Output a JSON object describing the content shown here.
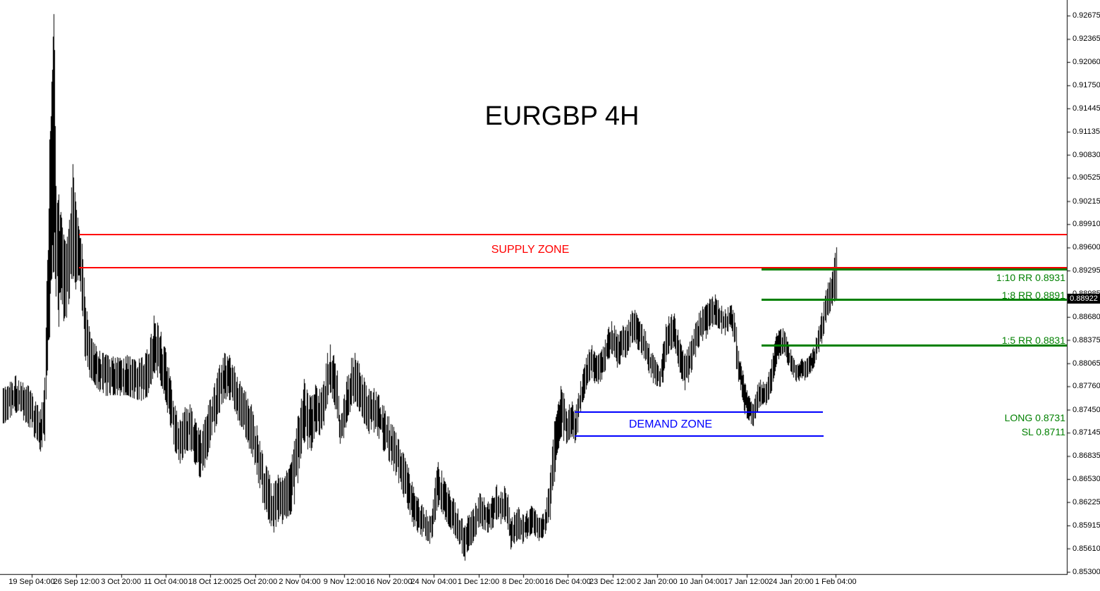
{
  "chart_data": {
    "type": "ohlc-bars",
    "title": "EURGBP 4H",
    "symbol": "EURGBP",
    "timeframe": "4H",
    "background_color": "#FFFFFF",
    "bar_color": "#000000",
    "current_price": "0.88922",
    "price_axis": {
      "side": "right",
      "ticks": [
        "0.92675",
        "0.92365",
        "0.92060",
        "0.91750",
        "0.91445",
        "0.91135",
        "0.90830",
        "0.90525",
        "0.90215",
        "0.89910",
        "0.89600",
        "0.89295",
        "0.88985",
        "0.88680",
        "0.88375",
        "0.88065",
        "0.87760",
        "0.87450",
        "0.87145",
        "0.86835",
        "0.86530",
        "0.86225",
        "0.85915",
        "0.85610",
        "0.85300"
      ],
      "top_price": 0.92675,
      "bottom_price": 0.853
    },
    "time_axis": {
      "labels": [
        "19 Sep 04:00",
        "26 Sep 12:00",
        "3 Oct 20:00",
        "11 Oct 04:00",
        "18 Oct 12:00",
        "25 Oct 20:00",
        "2 Nov 04:00",
        "9 Nov 12:00",
        "16 Nov 20:00",
        "24 Nov 04:00",
        "1 Dec 12:00",
        "8 Dec 20:00",
        "16 Dec 04:00",
        "23 Dec 12:00",
        "2 Jan 20:00",
        "10 Jan 04:00",
        "17 Jan 12:00",
        "24 Jan 20:00",
        "1 Feb 04:00"
      ]
    },
    "zones": {
      "supply": {
        "label": "SUPPLY ZONE",
        "color": "#FF0000",
        "top_price": 0.8978,
        "bottom_price": 0.8934
      },
      "demand": {
        "label": "DEMAND ZONE",
        "color": "#0000FF",
        "top_price": 0.8743,
        "bottom_price": 0.8711
      }
    },
    "levels": [
      {
        "label": "1:10 RR 0.8931",
        "price": 0.8931,
        "color": "#008000",
        "has_line": true
      },
      {
        "label": "1:8 RR 0.8891",
        "price": 0.8891,
        "color": "#008000",
        "has_line": true
      },
      {
        "label": "1:5 RR 0.8831",
        "price": 0.8831,
        "color": "#008000",
        "has_line": true
      },
      {
        "label": "LONG 0.8731",
        "price": 0.8731,
        "color": "#008000",
        "has_line": false
      },
      {
        "label": "SL 0.8711",
        "price": 0.8711,
        "color": "#008000",
        "has_line": false
      }
    ],
    "bars_path": [
      [
        5,
        0.87735,
        0.87267
      ],
      [
        22,
        0.87903,
        0.87407
      ],
      [
        40,
        0.87763,
        0.8722
      ],
      [
        57,
        0.87454,
        0.86893
      ],
      [
        63,
        0.87875,
        0.87033
      ],
      [
        67,
        0.89436,
        0.87968
      ],
      [
        70,
        0.91035,
        0.88408
      ],
      [
        73,
        0.91802,
        0.89184
      ],
      [
        76,
        0.927,
        0.89277
      ],
      [
        79,
        0.90418,
        0.88997
      ],
      [
        83,
        0.90306,
        0.88548
      ],
      [
        86,
        0.90072,
        0.88903
      ],
      [
        90,
        0.89745,
        0.88623
      ],
      [
        94,
        0.89651,
        0.8867
      ],
      [
        98,
        0.89932,
        0.88922
      ],
      [
        103,
        0.90708,
        0.89184
      ],
      [
        107,
        0.90212,
        0.89044
      ],
      [
        112,
        0.89838,
        0.89231
      ],
      [
        116,
        0.89651,
        0.88763
      ],
      [
        120,
        0.8895,
        0.88155
      ],
      [
        127,
        0.88483,
        0.87875
      ],
      [
        134,
        0.88324,
        0.87781
      ],
      [
        141,
        0.8823,
        0.87688
      ],
      [
        150,
        0.88183,
        0.87632
      ],
      [
        160,
        0.88155,
        0.87641
      ],
      [
        170,
        0.88137,
        0.87632
      ],
      [
        180,
        0.88174,
        0.87641
      ],
      [
        190,
        0.88118,
        0.87594
      ],
      [
        200,
        0.88137,
        0.87566
      ],
      [
        208,
        0.88249,
        0.87613
      ],
      [
        214,
        0.88455,
        0.87781
      ],
      [
        218,
        0.88698,
        0.8794
      ],
      [
        223,
        0.88604,
        0.87875
      ],
      [
        228,
        0.88483,
        0.87763
      ],
      [
        234,
        0.88268,
        0.87576
      ],
      [
        241,
        0.87894,
        0.87239
      ],
      [
        248,
        0.87501,
        0.86893
      ],
      [
        255,
        0.87314,
        0.86734
      ],
      [
        262,
        0.87482,
        0.86865
      ],
      [
        269,
        0.8752,
        0.86921
      ],
      [
        276,
        0.87333,
        0.86734
      ],
      [
        283,
        0.87174,
        0.86547
      ],
      [
        290,
        0.87314,
        0.86678
      ],
      [
        297,
        0.87576,
        0.8694
      ],
      [
        304,
        0.878,
        0.87146
      ],
      [
        311,
        0.88043,
        0.87407
      ],
      [
        318,
        0.88202,
        0.87594
      ],
      [
        325,
        0.88174,
        0.87576
      ],
      [
        332,
        0.88015,
        0.87454
      ],
      [
        340,
        0.87828,
        0.87239
      ],
      [
        348,
        0.87688,
        0.8708
      ],
      [
        356,
        0.8752,
        0.86865
      ],
      [
        364,
        0.87239,
        0.86585
      ],
      [
        372,
        0.86865,
        0.86211
      ],
      [
        380,
        0.86641,
        0.85986
      ],
      [
        388,
        0.86472,
        0.85818
      ],
      [
        394,
        0.86585,
        0.85958
      ],
      [
        400,
        0.86547,
        0.8593
      ],
      [
        406,
        0.86641,
        0.86005
      ],
      [
        412,
        0.86734,
        0.86061
      ],
      [
        417,
        0.87033,
        0.86192
      ],
      [
        422,
        0.87361,
        0.86472
      ],
      [
        427,
        0.87594,
        0.86865
      ],
      [
        431,
        0.87856,
        0.87005
      ],
      [
        436,
        0.87669,
        0.86921
      ],
      [
        441,
        0.87632,
        0.86902
      ],
      [
        447,
        0.87781,
        0.87155
      ],
      [
        453,
        0.87725,
        0.87108
      ],
      [
        459,
        0.87828,
        0.87239
      ],
      [
        464,
        0.88202,
        0.8752
      ],
      [
        468,
        0.88314,
        0.87669
      ],
      [
        473,
        0.88174,
        0.87548
      ],
      [
        478,
        0.87968,
        0.87333
      ],
      [
        482,
        0.87314,
        0.86996
      ],
      [
        487,
        0.87594,
        0.87071
      ],
      [
        492,
        0.87894,
        0.87295
      ],
      [
        498,
        0.88137,
        0.87501
      ],
      [
        503,
        0.88202,
        0.87548
      ],
      [
        509,
        0.88062,
        0.87426
      ],
      [
        516,
        0.87875,
        0.87267
      ],
      [
        523,
        0.87725,
        0.87127
      ],
      [
        530,
        0.87735,
        0.87146
      ],
      [
        537,
        0.87641,
        0.87061
      ],
      [
        544,
        0.87501,
        0.86893
      ],
      [
        551,
        0.87361,
        0.86772
      ],
      [
        558,
        0.8722,
        0.86631
      ],
      [
        565,
        0.87052,
        0.86472
      ],
      [
        572,
        0.86865,
        0.86285
      ],
      [
        579,
        0.86678,
        0.86117
      ],
      [
        586,
        0.86426,
        0.85893
      ],
      [
        592,
        0.86285,
        0.85818
      ],
      [
        598,
        0.86192,
        0.85762
      ],
      [
        604,
        0.86117,
        0.85724
      ],
      [
        609,
        0.86043,
        0.85668
      ],
      [
        613,
        0.86136,
        0.85762
      ],
      [
        617,
        0.86547,
        0.85986
      ],
      [
        621,
        0.86753,
        0.86154
      ],
      [
        626,
        0.86641,
        0.86089
      ],
      [
        631,
        0.86491,
        0.85986
      ],
      [
        637,
        0.86379,
        0.85893
      ],
      [
        643,
        0.86267,
        0.85799
      ],
      [
        649,
        0.86136,
        0.85706
      ],
      [
        655,
        0.86005,
        0.85537
      ],
      [
        659,
        0.85911,
        0.85444
      ],
      [
        663,
        0.86043,
        0.85575
      ],
      [
        668,
        0.86098,
        0.8565
      ],
      [
        674,
        0.86211,
        0.85762
      ],
      [
        680,
        0.86341,
        0.85893
      ],
      [
        686,
        0.86285,
        0.85855
      ],
      [
        692,
        0.86229,
        0.85818
      ],
      [
        698,
        0.86304,
        0.85874
      ],
      [
        704,
        0.86454,
        0.85986
      ],
      [
        710,
        0.8636,
        0.8593
      ],
      [
        715,
        0.86435,
        0.85986
      ],
      [
        720,
        0.86323,
        0.85874
      ],
      [
        724,
        0.86005,
        0.85593
      ],
      [
        729,
        0.86089,
        0.85668
      ],
      [
        735,
        0.86154,
        0.85734
      ],
      [
        741,
        0.86061,
        0.85668
      ],
      [
        747,
        0.86108,
        0.85734
      ],
      [
        753,
        0.86173,
        0.85799
      ],
      [
        759,
        0.86117,
        0.85762
      ],
      [
        764,
        0.86014,
        0.85706
      ],
      [
        769,
        0.86061,
        0.85743
      ],
      [
        773,
        0.86126,
        0.85799
      ],
      [
        777,
        0.86398,
        0.85949
      ],
      [
        780,
        0.86613,
        0.85986
      ],
      [
        783,
        0.86959,
        0.86379
      ],
      [
        786,
        0.87295,
        0.86491
      ],
      [
        789,
        0.87389,
        0.86846
      ],
      [
        792,
        0.87557,
        0.8694
      ],
      [
        795,
        0.87763,
        0.8708
      ],
      [
        799,
        0.87669,
        0.87033
      ],
      [
        803,
        0.87426,
        0.86996
      ],
      [
        807,
        0.8752,
        0.87052
      ],
      [
        811,
        0.87557,
        0.87089
      ],
      [
        815,
        0.87445,
        0.87005
      ],
      [
        819,
        0.87594,
        0.87146
      ],
      [
        823,
        0.87828,
        0.87417
      ],
      [
        827,
        0.87987,
        0.87576
      ],
      [
        831,
        0.88137,
        0.87735
      ],
      [
        835,
        0.88249,
        0.87819
      ],
      [
        839,
        0.88305,
        0.87865
      ],
      [
        843,
        0.88211,
        0.878
      ],
      [
        848,
        0.88174,
        0.87791
      ],
      [
        853,
        0.88249,
        0.87847
      ],
      [
        858,
        0.8838,
        0.87968
      ],
      [
        863,
        0.88548,
        0.88118
      ],
      [
        867,
        0.88623,
        0.88193
      ],
      [
        871,
        0.88567,
        0.88146
      ],
      [
        875,
        0.88455,
        0.88006
      ],
      [
        879,
        0.88492,
        0.88052
      ],
      [
        883,
        0.88567,
        0.88155
      ],
      [
        887,
        0.88548,
        0.88137
      ],
      [
        891,
        0.88642,
        0.8823
      ],
      [
        896,
        0.88763,
        0.88333
      ],
      [
        900,
        0.88772,
        0.88342
      ],
      [
        905,
        0.8866,
        0.88239
      ],
      [
        910,
        0.88585,
        0.88174
      ],
      [
        915,
        0.88492,
        0.88099
      ],
      [
        920,
        0.88324,
        0.87931
      ],
      [
        926,
        0.88174,
        0.878
      ],
      [
        931,
        0.88081,
        0.87763
      ],
      [
        936,
        0.87987,
        0.87753
      ],
      [
        940,
        0.88324,
        0.87809
      ],
      [
        944,
        0.88585,
        0.88081
      ],
      [
        948,
        0.88688,
        0.88193
      ],
      [
        952,
        0.88716,
        0.88249
      ],
      [
        956,
        0.88726,
        0.88286
      ],
      [
        961,
        0.88511,
        0.88062
      ],
      [
        966,
        0.88305,
        0.87856
      ],
      [
        971,
        0.88193,
        0.87707
      ],
      [
        976,
        0.88286,
        0.87819
      ],
      [
        981,
        0.88436,
        0.87978
      ],
      [
        986,
        0.88595,
        0.88146
      ],
      [
        991,
        0.88735,
        0.88286
      ],
      [
        996,
        0.88819,
        0.88361
      ],
      [
        1001,
        0.88847,
        0.88389
      ],
      [
        1006,
        0.88922,
        0.88511
      ],
      [
        1010,
        0.8895,
        0.88548
      ],
      [
        1014,
        0.88978,
        0.88576
      ],
      [
        1018,
        0.88903,
        0.88529
      ],
      [
        1023,
        0.88829,
        0.88455
      ],
      [
        1028,
        0.88782,
        0.88436
      ],
      [
        1032,
        0.8881,
        0.88483
      ],
      [
        1037,
        0.88838,
        0.88529
      ],
      [
        1041,
        0.88735,
        0.88342
      ],
      [
        1044,
        0.88529,
        0.87987
      ],
      [
        1047,
        0.8823,
        0.87819
      ],
      [
        1050,
        0.8809,
        0.87707
      ],
      [
        1053,
        0.87968,
        0.87576
      ],
      [
        1056,
        0.878,
        0.87389
      ],
      [
        1059,
        0.87707,
        0.87333
      ],
      [
        1062,
        0.87632,
        0.87304
      ],
      [
        1065,
        0.87557,
        0.87258
      ],
      [
        1068,
        0.8752,
        0.8723
      ],
      [
        1071,
        0.8765,
        0.87333
      ],
      [
        1074,
        0.87781,
        0.87417
      ],
      [
        1078,
        0.87847,
        0.87491
      ],
      [
        1082,
        0.87819,
        0.8752
      ],
      [
        1086,
        0.87791,
        0.8751
      ],
      [
        1090,
        0.8795,
        0.87585
      ],
      [
        1094,
        0.88118,
        0.87697
      ],
      [
        1098,
        0.88324,
        0.87903
      ],
      [
        1101,
        0.88464,
        0.88052
      ],
      [
        1104,
        0.88501,
        0.88118
      ],
      [
        1107,
        0.8852,
        0.88165
      ],
      [
        1110,
        0.88529,
        0.88193
      ],
      [
        1113,
        0.88473,
        0.88165
      ],
      [
        1117,
        0.88352,
        0.88043
      ],
      [
        1121,
        0.88249,
        0.87959
      ],
      [
        1125,
        0.88137,
        0.87875
      ],
      [
        1129,
        0.88043,
        0.87819
      ],
      [
        1133,
        0.88062,
        0.87828
      ],
      [
        1137,
        0.88127,
        0.87865
      ],
      [
        1141,
        0.88099,
        0.87837
      ],
      [
        1145,
        0.88137,
        0.87884
      ],
      [
        1149,
        0.88193,
        0.87931
      ],
      [
        1153,
        0.88277,
        0.87996
      ],
      [
        1157,
        0.88408,
        0.88109
      ],
      [
        1161,
        0.88557,
        0.88211
      ],
      [
        1165,
        0.88735,
        0.88324
      ],
      [
        1168,
        0.88885,
        0.88455
      ],
      [
        1171,
        0.89034,
        0.88604
      ],
      [
        1174,
        0.89137,
        0.88698
      ],
      [
        1177,
        0.89203,
        0.88754
      ],
      [
        1180,
        0.89277,
        0.88829
      ],
      [
        1183,
        0.89464,
        0.88885
      ],
      [
        1186,
        0.89605,
        0.88903
      ]
    ]
  }
}
